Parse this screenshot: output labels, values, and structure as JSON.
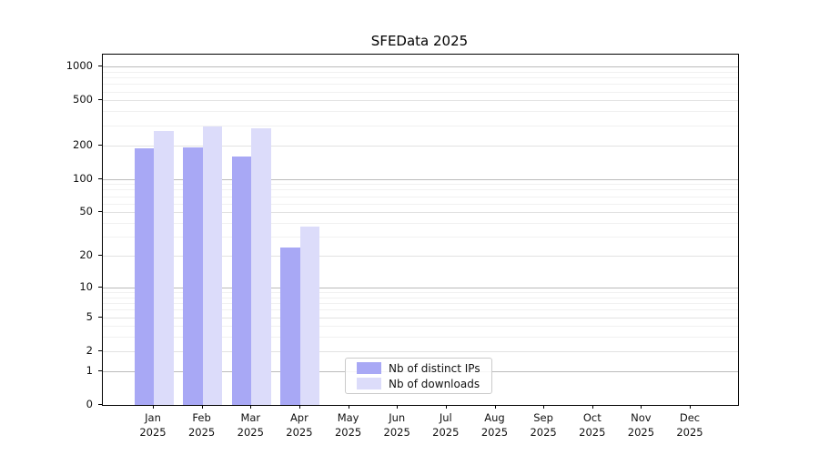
{
  "figure": {
    "background": "#ffffff",
    "axis_color": "#000000"
  },
  "chart_data": {
    "type": "bar",
    "title": "SFEData 2025",
    "xlabel": "",
    "ylabel": "",
    "categories": [
      {
        "month": "Jan",
        "year": "2025"
      },
      {
        "month": "Feb",
        "year": "2025"
      },
      {
        "month": "Mar",
        "year": "2025"
      },
      {
        "month": "Apr",
        "year": "2025"
      },
      {
        "month": "May",
        "year": "2025"
      },
      {
        "month": "Jun",
        "year": "2025"
      },
      {
        "month": "Jul",
        "year": "2025"
      },
      {
        "month": "Aug",
        "year": "2025"
      },
      {
        "month": "Sep",
        "year": "2025"
      },
      {
        "month": "Oct",
        "year": "2025"
      },
      {
        "month": "Nov",
        "year": "2025"
      },
      {
        "month": "Dec",
        "year": "2025"
      }
    ],
    "series": [
      {
        "name": "Nb of distinct IPs",
        "color": "#a8a8f5",
        "values": [
          188,
          192,
          158,
          24,
          0,
          0,
          0,
          0,
          0,
          0,
          0,
          0
        ]
      },
      {
        "name": "Nb of downloads",
        "color": "#dcdcfa",
        "values": [
          268,
          295,
          282,
          37,
          0,
          0,
          0,
          0,
          0,
          0,
          0,
          0
        ]
      }
    ],
    "yscale": "log1p",
    "ylim": [
      0,
      1274
    ],
    "y_ticks": [
      0,
      1,
      2,
      5,
      10,
      20,
      50,
      100,
      200,
      500,
      1000
    ],
    "y_minor_ticks": [
      3,
      4,
      6,
      7,
      8,
      9,
      30,
      40,
      60,
      70,
      80,
      90,
      300,
      400,
      600,
      700,
      800,
      900
    ],
    "grid": true,
    "legend_position": "bottom-center-inside",
    "grid_colors": {
      "power_of_10": "#bbbbbb",
      "major": "#e2e2e2",
      "minor": "#f1f1f1"
    }
  }
}
